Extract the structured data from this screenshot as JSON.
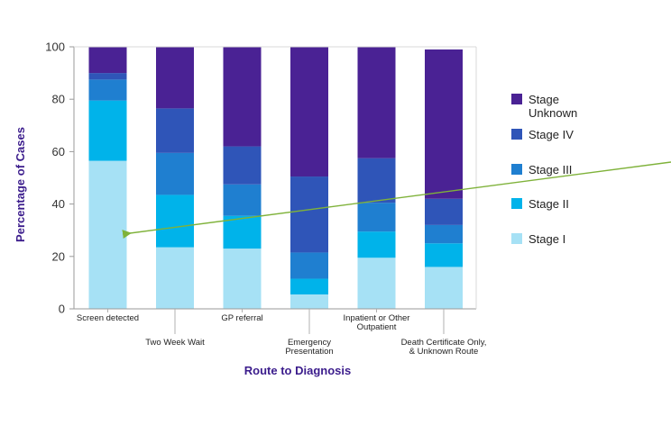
{
  "chart_data": {
    "type": "bar",
    "stacked": true,
    "title": "",
    "xlabel": "Route to Diagnosis",
    "ylabel": "Percentage of Cases",
    "ylim": [
      0,
      100
    ],
    "yticks": [
      0,
      20,
      40,
      60,
      80,
      100
    ],
    "grid": false,
    "legend_position": "right",
    "categories": [
      [
        "Screen detected"
      ],
      [
        "Two Week Wait"
      ],
      [
        "GP referral"
      ],
      [
        "Emergency",
        "Presentation"
      ],
      [
        "Inpatient or Other",
        "Outpatient"
      ],
      [
        "Death Certificate Only,",
        "& Unknown Route"
      ]
    ],
    "series": [
      {
        "name": "Stage I",
        "color": "#a6e1f5",
        "values": [
          56.5,
          23.5,
          23.0,
          5.5,
          19.5,
          16.0
        ]
      },
      {
        "name": "Stage II",
        "color": "#00b3ea",
        "values": [
          23.0,
          20.0,
          12.5,
          6.0,
          10.0,
          9.0
        ]
      },
      {
        "name": "Stage III",
        "color": "#1f7fd0",
        "values": [
          8.0,
          16.0,
          12.0,
          10.0,
          11.0,
          7.0
        ]
      },
      {
        "name": "Stage IV",
        "color": "#2f55b8",
        "values": [
          2.5,
          17.0,
          14.5,
          29.0,
          17.0,
          10.0
        ]
      },
      {
        "name": "Stage Unknown",
        "color": "#4a2294",
        "values": [
          10.0,
          23.5,
          38.0,
          49.5,
          42.5,
          57.0
        ]
      }
    ],
    "legend_labels": [
      [
        "Stage",
        "Unknown"
      ],
      [
        "Stage IV"
      ],
      [
        "Stage III"
      ],
      [
        "Stage II"
      ],
      [
        "Stage I"
      ]
    ],
    "annotations": [
      {
        "type": "arrow",
        "color": "#7fb23a",
        "from": "outside right of plot",
        "to": "Screen detected bar, Stage I segment"
      }
    ]
  }
}
